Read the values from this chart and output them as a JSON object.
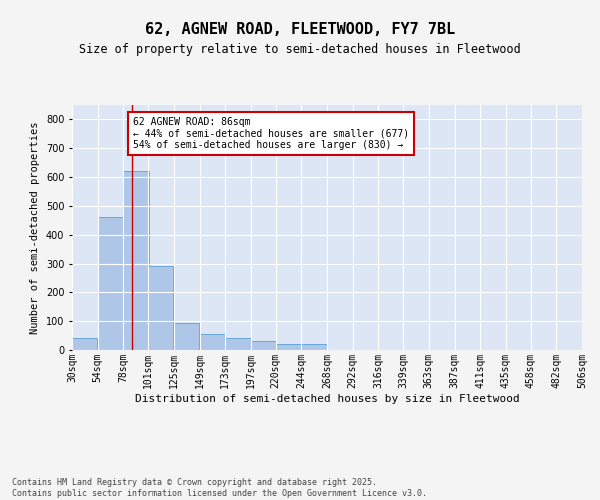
{
  "title": "62, AGNEW ROAD, FLEETWOOD, FY7 7BL",
  "subtitle": "Size of property relative to semi-detached houses in Fleetwood",
  "xlabel": "Distribution of semi-detached houses by size in Fleetwood",
  "ylabel": "Number of semi-detached properties",
  "bins": [
    30,
    54,
    78,
    101,
    125,
    149,
    173,
    197,
    220,
    244,
    268,
    292,
    316,
    339,
    363,
    387,
    411,
    435,
    458,
    482,
    506
  ],
  "bin_labels": [
    "30sqm",
    "54sqm",
    "78sqm",
    "101sqm",
    "125sqm",
    "149sqm",
    "173sqm",
    "197sqm",
    "220sqm",
    "244sqm",
    "268sqm",
    "292sqm",
    "316sqm",
    "339sqm",
    "363sqm",
    "387sqm",
    "411sqm",
    "435sqm",
    "458sqm",
    "482sqm",
    "506sqm"
  ],
  "values": [
    40,
    460,
    620,
    290,
    95,
    55,
    40,
    30,
    20,
    20,
    0,
    0,
    0,
    0,
    0,
    0,
    0,
    0,
    0,
    0
  ],
  "bar_color": "#aec6e8",
  "bar_edge_color": "#5a9fd4",
  "vline_x": 86,
  "vline_color": "#cc0000",
  "ylim": [
    0,
    850
  ],
  "yticks": [
    0,
    100,
    200,
    300,
    400,
    500,
    600,
    700,
    800
  ],
  "annotation_text": "62 AGNEW ROAD: 86sqm\n← 44% of semi-detached houses are smaller (677)\n54% of semi-detached houses are larger (830) →",
  "annotation_box_color": "#ffffff",
  "annotation_border_color": "#cc0000",
  "footer_text": "Contains HM Land Registry data © Crown copyright and database right 2025.\nContains public sector information licensed under the Open Government Licence v3.0.",
  "fig_bg_color": "#f4f4f4",
  "plot_bg_color": "#dce6f5",
  "grid_color": "#ffffff",
  "title_fontsize": 11,
  "subtitle_fontsize": 8.5,
  "xlabel_fontsize": 8,
  "ylabel_fontsize": 7.5,
  "tick_fontsize": 7,
  "annotation_fontsize": 7,
  "footer_fontsize": 6
}
